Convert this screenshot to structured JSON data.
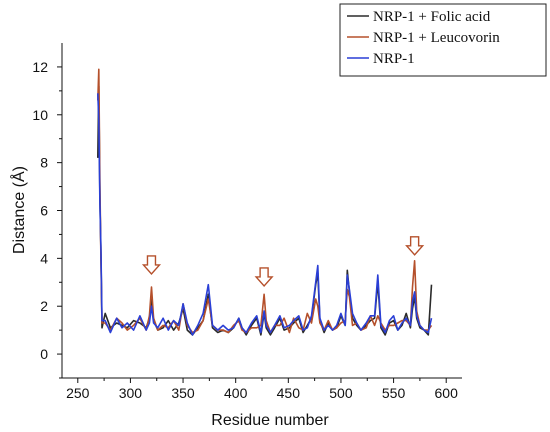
{
  "chart_data": {
    "type": "line",
    "xlabel": "Residue number",
    "ylabel": "Distance (Å)",
    "xlim": [
      235,
      615
    ],
    "ylim": [
      -1,
      13
    ],
    "x_ticks": [
      "250",
      "300",
      "350",
      "400",
      "450",
      "500",
      "550",
      "600"
    ],
    "y_ticks": [
      "0",
      "2",
      "4",
      "6",
      "8",
      "10",
      "12"
    ],
    "grid": false,
    "legend_position": "top-right",
    "series": [
      {
        "name": "NRP-1 + Folic acid",
        "color": "#2b2b2b",
        "points": [
          [
            269,
            8.2
          ],
          [
            270,
            11.2
          ],
          [
            271,
            6.5
          ],
          [
            272,
            4.3
          ],
          [
            273,
            1.1
          ],
          [
            276,
            1.7
          ],
          [
            281,
            1.1
          ],
          [
            287,
            1.3
          ],
          [
            292,
            1.2
          ],
          [
            297,
            1.1
          ],
          [
            303,
            1.4
          ],
          [
            309,
            1.3
          ],
          [
            315,
            1.1
          ],
          [
            318,
            1.5
          ],
          [
            320,
            2.3
          ],
          [
            322,
            1.4
          ],
          [
            326,
            1.0
          ],
          [
            331,
            1.1
          ],
          [
            336,
            1.4
          ],
          [
            341,
            1.0
          ],
          [
            346,
            1.3
          ],
          [
            350,
            1.9
          ],
          [
            354,
            1.0
          ],
          [
            359,
            0.8
          ],
          [
            364,
            1.1
          ],
          [
            369,
            1.4
          ],
          [
            374,
            2.5
          ],
          [
            378,
            1.1
          ],
          [
            383,
            0.9
          ],
          [
            388,
            1.0
          ],
          [
            393,
            0.9
          ],
          [
            398,
            1.1
          ],
          [
            403,
            1.5
          ],
          [
            406,
            1.1
          ],
          [
            410,
            0.8
          ],
          [
            415,
            1.2
          ],
          [
            420,
            1.5
          ],
          [
            424,
            0.8
          ],
          [
            427,
            1.7
          ],
          [
            429,
            1.1
          ],
          [
            433,
            0.8
          ],
          [
            437,
            1.1
          ],
          [
            442,
            1.5
          ],
          [
            446,
            1.0
          ],
          [
            451,
            1.1
          ],
          [
            455,
            1.3
          ],
          [
            460,
            1.5
          ],
          [
            464,
            0.9
          ],
          [
            468,
            1.2
          ],
          [
            472,
            1.5
          ],
          [
            476,
            2.9
          ],
          [
            478,
            3.4
          ],
          [
            480,
            1.4
          ],
          [
            484,
            0.9
          ],
          [
            488,
            1.3
          ],
          [
            492,
            1.0
          ],
          [
            496,
            1.1
          ],
          [
            500,
            1.6
          ],
          [
            504,
            1.2
          ],
          [
            506,
            3.5
          ],
          [
            508,
            2.6
          ],
          [
            511,
            1.5
          ],
          [
            515,
            1.2
          ],
          [
            519,
            1.0
          ],
          [
            524,
            1.2
          ],
          [
            528,
            1.4
          ],
          [
            532,
            1.5
          ],
          [
            535,
            3.0
          ],
          [
            538,
            1.1
          ],
          [
            542,
            0.8
          ],
          [
            546,
            1.3
          ],
          [
            550,
            1.4
          ],
          [
            554,
            1.0
          ],
          [
            558,
            1.2
          ],
          [
            562,
            1.7
          ],
          [
            566,
            1.1
          ],
          [
            568,
            1.9
          ],
          [
            570,
            2.4
          ],
          [
            572,
            1.5
          ],
          [
            575,
            1.1
          ],
          [
            579,
            1.0
          ],
          [
            583,
            0.8
          ],
          [
            586,
            2.9
          ]
        ]
      },
      {
        "name": "NRP-1 + Leucovorin",
        "color": "#b5502b",
        "points": [
          [
            269,
            10.6
          ],
          [
            270,
            11.9
          ],
          [
            271,
            7.2
          ],
          [
            272,
            4.0
          ],
          [
            273,
            1.3
          ],
          [
            276,
            1.3
          ],
          [
            281,
            1.0
          ],
          [
            287,
            1.5
          ],
          [
            292,
            1.3
          ],
          [
            297,
            1.0
          ],
          [
            303,
            1.2
          ],
          [
            309,
            1.5
          ],
          [
            315,
            1.0
          ],
          [
            318,
            1.6
          ],
          [
            320,
            2.8
          ],
          [
            322,
            1.5
          ],
          [
            326,
            1.0
          ],
          [
            331,
            1.2
          ],
          [
            336,
            1.1
          ],
          [
            341,
            1.4
          ],
          [
            346,
            1.0
          ],
          [
            350,
            2.1
          ],
          [
            354,
            1.2
          ],
          [
            359,
            0.9
          ],
          [
            364,
            1.0
          ],
          [
            369,
            1.4
          ],
          [
            374,
            2.3
          ],
          [
            378,
            1.2
          ],
          [
            383,
            1.0
          ],
          [
            388,
            1.0
          ],
          [
            393,
            0.9
          ],
          [
            398,
            1.2
          ],
          [
            403,
            1.4
          ],
          [
            406,
            1.0
          ],
          [
            410,
            0.9
          ],
          [
            415,
            1.1
          ],
          [
            420,
            1.1
          ],
          [
            424,
            1.2
          ],
          [
            427,
            2.5
          ],
          [
            429,
            1.4
          ],
          [
            433,
            0.9
          ],
          [
            437,
            1.2
          ],
          [
            442,
            1.2
          ],
          [
            446,
            1.5
          ],
          [
            451,
            0.9
          ],
          [
            455,
            1.5
          ],
          [
            460,
            1.1
          ],
          [
            464,
            1.0
          ],
          [
            468,
            1.7
          ],
          [
            472,
            1.3
          ],
          [
            476,
            2.3
          ],
          [
            478,
            2.0
          ],
          [
            480,
            1.3
          ],
          [
            484,
            1.0
          ],
          [
            488,
            1.4
          ],
          [
            492,
            1.0
          ],
          [
            496,
            1.1
          ],
          [
            500,
            1.3
          ],
          [
            504,
            1.4
          ],
          [
            506,
            2.7
          ],
          [
            508,
            2.4
          ],
          [
            511,
            1.2
          ],
          [
            515,
            1.3
          ],
          [
            519,
            1.0
          ],
          [
            524,
            1.1
          ],
          [
            528,
            1.6
          ],
          [
            532,
            1.2
          ],
          [
            535,
            1.6
          ],
          [
            538,
            1.3
          ],
          [
            542,
            1.0
          ],
          [
            546,
            1.2
          ],
          [
            550,
            1.2
          ],
          [
            554,
            1.3
          ],
          [
            558,
            1.4
          ],
          [
            562,
            1.4
          ],
          [
            566,
            1.2
          ],
          [
            568,
            2.8
          ],
          [
            570,
            3.9
          ],
          [
            572,
            1.8
          ],
          [
            575,
            1.2
          ],
          [
            579,
            1.0
          ],
          [
            583,
            1.0
          ],
          [
            586,
            1.2
          ]
        ]
      },
      {
        "name": "NRP-1",
        "color": "#2a3fd6",
        "points": [
          [
            269,
            10.9
          ],
          [
            270,
            9.8
          ],
          [
            271,
            6.3
          ],
          [
            272,
            4.5
          ],
          [
            273,
            1.4
          ],
          [
            276,
            1.4
          ],
          [
            281,
            0.9
          ],
          [
            287,
            1.5
          ],
          [
            292,
            1.1
          ],
          [
            297,
            1.3
          ],
          [
            303,
            1.0
          ],
          [
            309,
            1.6
          ],
          [
            315,
            1.0
          ],
          [
            318,
            1.3
          ],
          [
            320,
            2.0
          ],
          [
            322,
            1.3
          ],
          [
            326,
            1.1
          ],
          [
            331,
            1.5
          ],
          [
            336,
            1.0
          ],
          [
            341,
            1.4
          ],
          [
            346,
            1.2
          ],
          [
            350,
            2.1
          ],
          [
            354,
            1.3
          ],
          [
            359,
            0.8
          ],
          [
            364,
            1.2
          ],
          [
            369,
            1.7
          ],
          [
            374,
            2.9
          ],
          [
            378,
            1.2
          ],
          [
            383,
            1.0
          ],
          [
            388,
            1.2
          ],
          [
            393,
            1.0
          ],
          [
            398,
            1.1
          ],
          [
            403,
            1.5
          ],
          [
            406,
            1.1
          ],
          [
            410,
            0.9
          ],
          [
            415,
            1.3
          ],
          [
            420,
            1.6
          ],
          [
            424,
            0.9
          ],
          [
            427,
            1.8
          ],
          [
            429,
            1.2
          ],
          [
            433,
            0.9
          ],
          [
            437,
            1.2
          ],
          [
            442,
            1.6
          ],
          [
            446,
            1.1
          ],
          [
            451,
            1.2
          ],
          [
            455,
            1.4
          ],
          [
            460,
            1.6
          ],
          [
            464,
            1.0
          ],
          [
            468,
            1.1
          ],
          [
            472,
            1.6
          ],
          [
            476,
            3.0
          ],
          [
            478,
            3.7
          ],
          [
            480,
            1.5
          ],
          [
            484,
            1.0
          ],
          [
            488,
            1.2
          ],
          [
            492,
            1.0
          ],
          [
            496,
            1.2
          ],
          [
            500,
            1.7
          ],
          [
            504,
            1.2
          ],
          [
            506,
            3.3
          ],
          [
            508,
            2.7
          ],
          [
            511,
            1.7
          ],
          [
            515,
            1.3
          ],
          [
            519,
            1.0
          ],
          [
            524,
            1.3
          ],
          [
            528,
            1.6
          ],
          [
            532,
            1.6
          ],
          [
            535,
            3.3
          ],
          [
            538,
            1.2
          ],
          [
            542,
            0.9
          ],
          [
            546,
            1.4
          ],
          [
            550,
            1.6
          ],
          [
            554,
            1.0
          ],
          [
            558,
            1.3
          ],
          [
            562,
            1.5
          ],
          [
            566,
            1.2
          ],
          [
            568,
            2.2
          ],
          [
            570,
            2.6
          ],
          [
            572,
            1.6
          ],
          [
            575,
            1.2
          ],
          [
            579,
            1.0
          ],
          [
            583,
            0.9
          ],
          [
            586,
            1.5
          ]
        ]
      }
    ],
    "annotations": [
      {
        "type": "down-arrow",
        "x": 320,
        "y": 4.1,
        "color": "#b5502b"
      },
      {
        "type": "down-arrow",
        "x": 427,
        "y": 3.6,
        "color": "#b5502b"
      },
      {
        "type": "down-arrow",
        "x": 570,
        "y": 4.9,
        "color": "#b5502b"
      }
    ]
  }
}
